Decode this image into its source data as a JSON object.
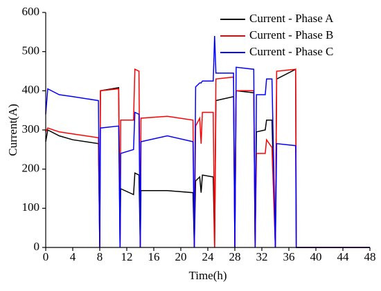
{
  "chart_data": {
    "type": "line",
    "xlabel": "Time(h)",
    "ylabel": "Current(A)",
    "x": [
      0,
      0.3,
      2,
      4,
      7.8,
      8,
      8.1,
      10.8,
      11,
      11.1,
      13,
      13.2,
      13.8,
      14,
      14.1,
      18,
      21.8,
      22,
      22.2,
      22.8,
      23,
      23.2,
      24.8,
      25,
      25.2,
      27.8,
      28,
      28.2,
      30.8,
      31,
      31.2,
      32.5,
      32.7,
      33.5,
      34,
      34.2,
      37,
      37.1,
      48
    ],
    "series": [
      {
        "name": "Current - Phase A",
        "color": "#000000",
        "values": [
          270,
          300,
          285,
          275,
          265,
          0,
          400,
          408,
          0,
          150,
          135,
          190,
          185,
          0,
          145,
          145,
          140,
          0,
          170,
          180,
          140,
          185,
          180,
          0,
          375,
          385,
          0,
          400,
          395,
          0,
          295,
          300,
          325,
          325,
          0,
          430,
          455,
          0,
          0
        ]
      },
      {
        "name": "Current - Phase B",
        "color": "#ff0000",
        "values": [
          295,
          305,
          295,
          290,
          280,
          0,
          400,
          405,
          0,
          325,
          325,
          455,
          450,
          0,
          330,
          335,
          325,
          0,
          310,
          330,
          265,
          345,
          345,
          0,
          430,
          435,
          0,
          400,
          400,
          0,
          240,
          240,
          275,
          255,
          0,
          450,
          455,
          0,
          0
        ]
      },
      {
        "name": "Current - Phase C",
        "color": "#0000ff",
        "values": [
          340,
          405,
          390,
          385,
          375,
          0,
          305,
          310,
          0,
          240,
          250,
          345,
          340,
          0,
          270,
          285,
          270,
          0,
          410,
          420,
          420,
          425,
          425,
          540,
          445,
          445,
          0,
          460,
          455,
          0,
          390,
          390,
          430,
          430,
          0,
          265,
          260,
          0,
          0
        ]
      }
    ],
    "xlim": [
      0,
      48
    ],
    "xticks": [
      0,
      4,
      8,
      12,
      16,
      20,
      24,
      28,
      32,
      36,
      40,
      44,
      48
    ],
    "ylim": [
      0,
      600
    ],
    "yticks": [
      0,
      100,
      200,
      300,
      400,
      500,
      600
    ],
    "legend": "upper right"
  }
}
